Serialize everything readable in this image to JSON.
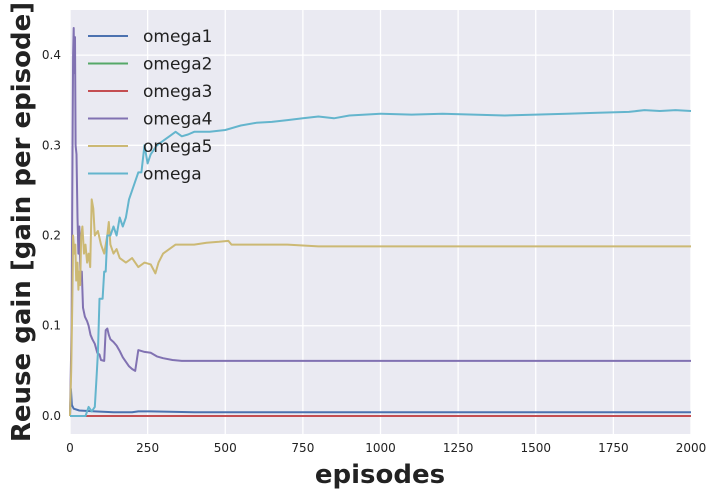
{
  "chart_data": {
    "type": "line",
    "xlabel": "episodes",
    "ylabel": "Reuse gain [gain per episode]",
    "xlim": [
      0,
      2000
    ],
    "ylim": [
      -0.02,
      0.45
    ],
    "xticks": [
      0,
      250,
      500,
      750,
      1000,
      1250,
      1500,
      1750,
      2000
    ],
    "xtick_labels": [
      "0",
      "250",
      "500",
      "750",
      "1000",
      "1250",
      "1500",
      "1750",
      "2000"
    ],
    "yticks": [
      0.0,
      0.1,
      0.2,
      0.3,
      0.4
    ],
    "ytick_labels": [
      "0.0",
      "0.1",
      "0.2",
      "0.3",
      "0.4"
    ],
    "grid": true,
    "legend_position": "top-left",
    "background": "#eaeaf2",
    "series": [
      {
        "name": "omega1",
        "color": "#4c72b0",
        "points": [
          [
            0,
            0
          ],
          [
            3,
            0.03
          ],
          [
            6,
            0.012
          ],
          [
            12,
            0.008
          ],
          [
            30,
            0.006
          ],
          [
            80,
            0.005
          ],
          [
            140,
            0.004
          ],
          [
            200,
            0.004
          ],
          [
            220,
            0.005
          ],
          [
            260,
            0.005
          ],
          [
            400,
            0.004
          ],
          [
            800,
            0.004
          ],
          [
            1500,
            0.004
          ],
          [
            2000,
            0.004
          ]
        ]
      },
      {
        "name": "omega2",
        "color": "#55a868",
        "points": [
          [
            0,
            0
          ],
          [
            2000,
            0
          ]
        ]
      },
      {
        "name": "omega3",
        "color": "#c44e52",
        "points": [
          [
            0,
            0
          ],
          [
            2000,
            0
          ]
        ]
      },
      {
        "name": "omega4",
        "color": "#8172b2",
        "points": [
          [
            0,
            0
          ],
          [
            5,
            0.1
          ],
          [
            8,
            0.29
          ],
          [
            10,
            0.4
          ],
          [
            12,
            0.43
          ],
          [
            14,
            0.38
          ],
          [
            16,
            0.42
          ],
          [
            18,
            0.3
          ],
          [
            21,
            0.29
          ],
          [
            24,
            0.22
          ],
          [
            27,
            0.18
          ],
          [
            30,
            0.21
          ],
          [
            34,
            0.15
          ],
          [
            38,
            0.16
          ],
          [
            42,
            0.12
          ],
          [
            48,
            0.11
          ],
          [
            55,
            0.105
          ],
          [
            60,
            0.1
          ],
          [
            66,
            0.09
          ],
          [
            72,
            0.085
          ],
          [
            80,
            0.08
          ],
          [
            88,
            0.07
          ],
          [
            95,
            0.068
          ],
          [
            100,
            0.062
          ],
          [
            110,
            0.061
          ],
          [
            115,
            0.095
          ],
          [
            120,
            0.097
          ],
          [
            125,
            0.09
          ],
          [
            130,
            0.085
          ],
          [
            140,
            0.082
          ],
          [
            150,
            0.078
          ],
          [
            160,
            0.072
          ],
          [
            170,
            0.065
          ],
          [
            180,
            0.06
          ],
          [
            190,
            0.055
          ],
          [
            200,
            0.052
          ],
          [
            210,
            0.05
          ],
          [
            220,
            0.073
          ],
          [
            240,
            0.071
          ],
          [
            260,
            0.07
          ],
          [
            280,
            0.066
          ],
          [
            300,
            0.064
          ],
          [
            330,
            0.062
          ],
          [
            360,
            0.061
          ],
          [
            500,
            0.061
          ],
          [
            1000,
            0.061
          ],
          [
            1500,
            0.061
          ],
          [
            2000,
            0.061
          ]
        ]
      },
      {
        "name": "omega5",
        "color": "#ccb974",
        "points": [
          [
            0,
            0
          ],
          [
            4,
            0.05
          ],
          [
            8,
            0.14
          ],
          [
            10,
            0.2
          ],
          [
            14,
            0.18
          ],
          [
            17,
            0.19
          ],
          [
            20,
            0.15
          ],
          [
            24,
            0.17
          ],
          [
            27,
            0.14
          ],
          [
            30,
            0.16
          ],
          [
            33,
            0.145
          ],
          [
            36,
            0.2
          ],
          [
            40,
            0.21
          ],
          [
            45,
            0.18
          ],
          [
            50,
            0.19
          ],
          [
            55,
            0.17
          ],
          [
            60,
            0.18
          ],
          [
            65,
            0.165
          ],
          [
            70,
            0.24
          ],
          [
            75,
            0.23
          ],
          [
            80,
            0.2
          ],
          [
            90,
            0.205
          ],
          [
            100,
            0.19
          ],
          [
            110,
            0.18
          ],
          [
            120,
            0.2
          ],
          [
            125,
            0.215
          ],
          [
            130,
            0.19
          ],
          [
            140,
            0.18
          ],
          [
            150,
            0.185
          ],
          [
            160,
            0.175
          ],
          [
            180,
            0.17
          ],
          [
            200,
            0.175
          ],
          [
            220,
            0.165
          ],
          [
            240,
            0.17
          ],
          [
            260,
            0.168
          ],
          [
            275,
            0.158
          ],
          [
            285,
            0.17
          ],
          [
            300,
            0.18
          ],
          [
            340,
            0.19
          ],
          [
            400,
            0.19
          ],
          [
            440,
            0.192
          ],
          [
            480,
            0.193
          ],
          [
            510,
            0.194
          ],
          [
            520,
            0.19
          ],
          [
            600,
            0.19
          ],
          [
            700,
            0.19
          ],
          [
            800,
            0.188
          ],
          [
            1000,
            0.188
          ],
          [
            1500,
            0.188
          ],
          [
            2000,
            0.188
          ]
        ]
      },
      {
        "name": "omega",
        "color": "#64b5cd",
        "points": [
          [
            0,
            0
          ],
          [
            50,
            0
          ],
          [
            55,
            0.005
          ],
          [
            60,
            0.01
          ],
          [
            70,
            0.005
          ],
          [
            80,
            0.01
          ],
          [
            85,
            0.04
          ],
          [
            90,
            0.07
          ],
          [
            95,
            0.13
          ],
          [
            105,
            0.13
          ],
          [
            110,
            0.16
          ],
          [
            115,
            0.16
          ],
          [
            120,
            0.2
          ],
          [
            130,
            0.2
          ],
          [
            140,
            0.21
          ],
          [
            150,
            0.2
          ],
          [
            160,
            0.22
          ],
          [
            170,
            0.21
          ],
          [
            180,
            0.22
          ],
          [
            190,
            0.24
          ],
          [
            200,
            0.25
          ],
          [
            210,
            0.26
          ],
          [
            220,
            0.27
          ],
          [
            230,
            0.27
          ],
          [
            240,
            0.3
          ],
          [
            250,
            0.28
          ],
          [
            260,
            0.29
          ],
          [
            270,
            0.295
          ],
          [
            280,
            0.3
          ],
          [
            300,
            0.305
          ],
          [
            320,
            0.31
          ],
          [
            340,
            0.315
          ],
          [
            360,
            0.31
          ],
          [
            380,
            0.312
          ],
          [
            400,
            0.315
          ],
          [
            450,
            0.315
          ],
          [
            500,
            0.317
          ],
          [
            550,
            0.322
          ],
          [
            600,
            0.325
          ],
          [
            650,
            0.326
          ],
          [
            700,
            0.328
          ],
          [
            750,
            0.33
          ],
          [
            800,
            0.332
          ],
          [
            850,
            0.33
          ],
          [
            900,
            0.333
          ],
          [
            950,
            0.334
          ],
          [
            1000,
            0.335
          ],
          [
            1100,
            0.334
          ],
          [
            1200,
            0.335
          ],
          [
            1300,
            0.334
          ],
          [
            1400,
            0.333
          ],
          [
            1500,
            0.334
          ],
          [
            1600,
            0.335
          ],
          [
            1700,
            0.336
          ],
          [
            1800,
            0.337
          ],
          [
            1850,
            0.339
          ],
          [
            1900,
            0.338
          ],
          [
            1950,
            0.339
          ],
          [
            2000,
            0.338
          ]
        ]
      }
    ]
  }
}
